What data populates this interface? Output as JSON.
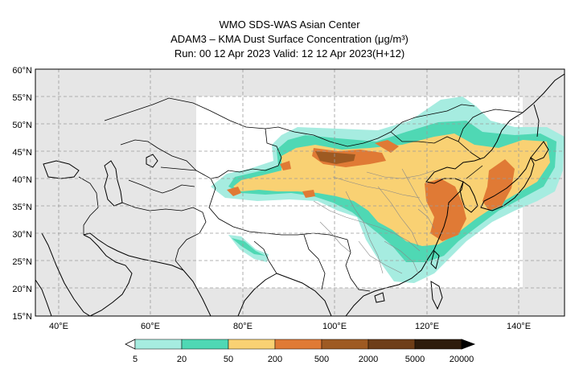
{
  "header": {
    "line1": "WMO SDS-WAS Asian Center",
    "line2": "ADAM3 – KMA Dust Surface Concentration (μg/m³)",
    "line3": "Run: 00 12 Apr 2023    Valid: 12 12 Apr 2023(H+12)"
  },
  "map": {
    "lon_range": [
      35,
      150
    ],
    "lat_range": [
      15,
      60
    ],
    "lon_ticks": [
      "40°E",
      "60°E",
      "80°E",
      "100°E",
      "120°E",
      "140°E"
    ],
    "lat_ticks": [
      "15°N",
      "20°N",
      "25°N",
      "30°N",
      "35°N",
      "40°N",
      "45°N",
      "50°N",
      "55°N",
      "60°N"
    ],
    "grid": true,
    "no_data_color": "#e6e6e6"
  },
  "legend": {
    "labels": [
      "5",
      "20",
      "50",
      "200",
      "500",
      "2000",
      "5000",
      "20000"
    ],
    "colors": [
      "#a6ece0",
      "#4fd8b4",
      "#f9d173",
      "#e07a35",
      "#9e5a22",
      "#6e3e18",
      "#2e1c0c"
    ],
    "under_color": "#ffffff",
    "over_color": "#000000"
  }
}
